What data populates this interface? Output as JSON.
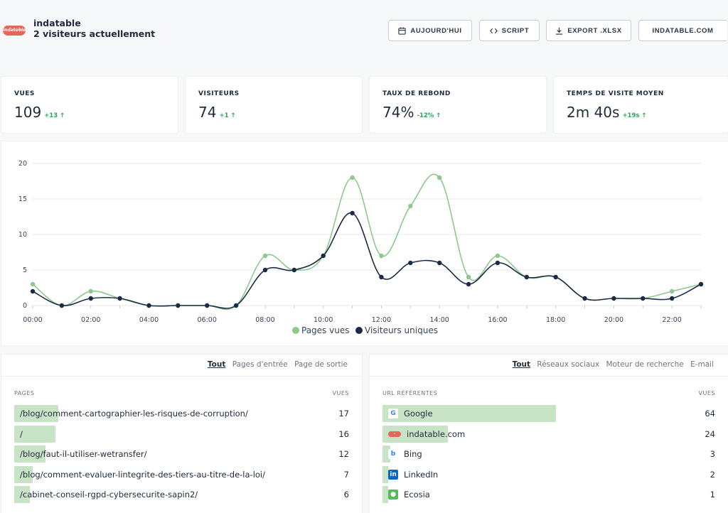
{
  "header": {
    "logo_text": "indatable",
    "site_name": "indatable",
    "live_visitors": "2 visiteurs actuellement",
    "buttons": {
      "today": "AUJOURD'HUI",
      "script": "SCRIPT",
      "export": "EXPORT .XLSX",
      "site": "INDATABLE.COM"
    }
  },
  "stats": [
    {
      "label": "VUES",
      "value": "109",
      "delta": "+13"
    },
    {
      "label": "VISITEURS",
      "value": "74",
      "delta": "+1"
    },
    {
      "label": "TAUX DE REBOND",
      "value": "74%",
      "delta": "-12%"
    },
    {
      "label": "TEMPS DE VISITE MOYEN",
      "value": "2m 40s",
      "delta": "+19s"
    }
  ],
  "chart_data": {
    "type": "line",
    "x": [
      "00:00",
      "01:00",
      "02:00",
      "03:00",
      "04:00",
      "05:00",
      "06:00",
      "07:00",
      "08:00",
      "09:00",
      "10:00",
      "11:00",
      "12:00",
      "13:00",
      "14:00",
      "15:00",
      "16:00",
      "17:00",
      "18:00",
      "19:00",
      "20:00",
      "21:00",
      "22:00",
      "23:00"
    ],
    "x_tick_labels": [
      "00:00",
      "02:00",
      "04:00",
      "06:00",
      "08:00",
      "10:00",
      "12:00",
      "14:00",
      "16:00",
      "18:00",
      "20:00",
      "22:00"
    ],
    "series": [
      {
        "name": "Pages vues",
        "color": "#8cc98b",
        "values": [
          3,
          0,
          2,
          1,
          0,
          0,
          0,
          0,
          7,
          5,
          7,
          18,
          7,
          14,
          18,
          4,
          7,
          4,
          4,
          1,
          1,
          1,
          2,
          3
        ]
      },
      {
        "name": "Visiteurs uniques",
        "color": "#1c2b45",
        "values": [
          2,
          0,
          1,
          1,
          0,
          0,
          0,
          0,
          5,
          5,
          7,
          13,
          4,
          6,
          6,
          3,
          6,
          4,
          4,
          1,
          1,
          1,
          1,
          3
        ]
      }
    ],
    "y_ticks": [
      "0",
      "5",
      "10",
      "15",
      "20"
    ],
    "ylim": [
      0,
      20
    ],
    "grid": true,
    "legend": "bottom"
  },
  "pages_panel": {
    "tabs": [
      "Tout",
      "Pages d'entrée",
      "Page de sortie"
    ],
    "col_left": "PAGES",
    "col_right": "VUES",
    "max": 17,
    "rows": [
      {
        "label": "/blog/comment-cartographier-les-risques-de-corruption/",
        "count": 17
      },
      {
        "label": "/",
        "count": 16
      },
      {
        "label": "/blog/faut-il-utiliser-wetransfer/",
        "count": 12
      },
      {
        "label": "/blog/comment-evaluer-lintegrite-des-tiers-au-titre-de-la-loi/",
        "count": 7
      },
      {
        "label": "/cabinet-conseil-rgpd-cybersecurite-sapin2/",
        "count": 6
      }
    ]
  },
  "referrers_panel": {
    "tabs": [
      "Tout",
      "Réseaux sociaux",
      "Moteur de recherche",
      "E-mail"
    ],
    "col_left": "URL RÉFÉRENTES",
    "col_right": "VUES",
    "max": 64,
    "rows": [
      {
        "label": "Google",
        "count": 64,
        "icon": "google-icon"
      },
      {
        "label": "indatable.com",
        "count": 24,
        "icon": "indatable-icon"
      },
      {
        "label": "Bing",
        "count": 3,
        "icon": "bing-icon"
      },
      {
        "label": "LinkedIn",
        "count": 2,
        "icon": "linkedin-icon"
      },
      {
        "label": "Ecosia",
        "count": 1,
        "icon": "ecosia-icon"
      }
    ]
  }
}
